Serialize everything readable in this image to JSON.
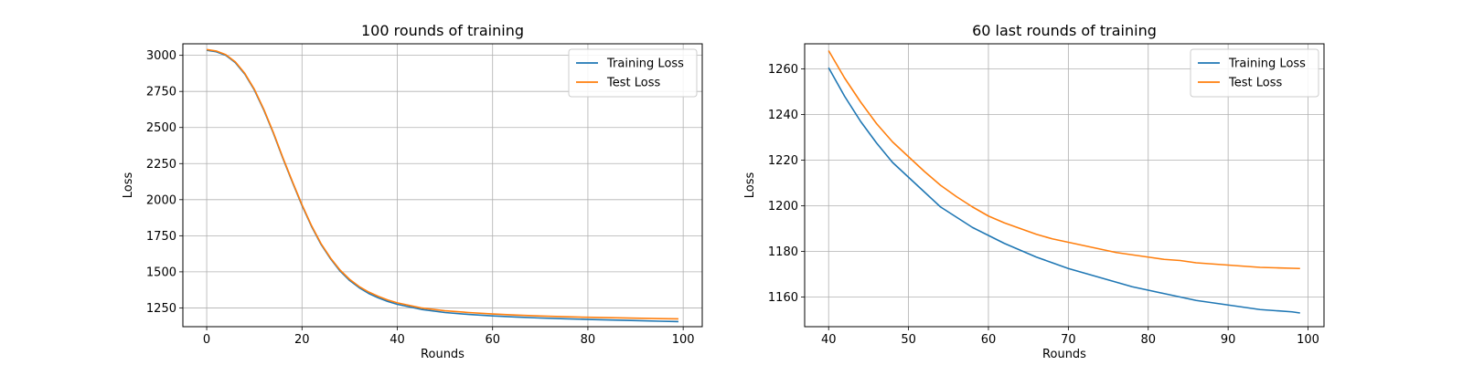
{
  "chart_data": [
    {
      "type": "line",
      "title": "100 rounds of training",
      "xlabel": "Rounds",
      "ylabel": "Loss",
      "xlim": [
        -5,
        104
      ],
      "ylim": [
        1120,
        3080
      ],
      "xticks": [
        0,
        20,
        40,
        60,
        80,
        100
      ],
      "yticks": [
        1250,
        1500,
        1750,
        2000,
        2250,
        2500,
        2750,
        3000
      ],
      "grid": true,
      "legend": "top-right",
      "series": [
        {
          "name": "Training Loss",
          "color": "#1f77b4",
          "x": [
            0,
            2,
            4,
            6,
            8,
            10,
            12,
            14,
            16,
            18,
            20,
            22,
            24,
            26,
            28,
            30,
            32,
            34,
            36,
            38,
            40,
            45,
            50,
            55,
            60,
            65,
            70,
            75,
            80,
            85,
            90,
            95,
            99
          ],
          "y": [
            3035,
            3025,
            3000,
            2950,
            2870,
            2760,
            2620,
            2460,
            2285,
            2120,
            1960,
            1815,
            1690,
            1590,
            1505,
            1440,
            1390,
            1350,
            1320,
            1295,
            1275,
            1240,
            1218,
            1205,
            1195,
            1187,
            1180,
            1175,
            1170,
            1166,
            1162,
            1158,
            1155
          ]
        },
        {
          "name": "Test Loss",
          "color": "#ff7f0e",
          "x": [
            0,
            2,
            4,
            6,
            8,
            10,
            12,
            14,
            16,
            18,
            20,
            22,
            24,
            26,
            28,
            30,
            32,
            34,
            36,
            38,
            40,
            45,
            50,
            55,
            60,
            65,
            70,
            75,
            80,
            85,
            90,
            95,
            99
          ],
          "y": [
            3040,
            3030,
            3005,
            2955,
            2875,
            2765,
            2625,
            2465,
            2290,
            2125,
            1965,
            1820,
            1695,
            1595,
            1512,
            1448,
            1398,
            1360,
            1330,
            1305,
            1285,
            1250,
            1230,
            1218,
            1208,
            1200,
            1194,
            1189,
            1185,
            1182,
            1179,
            1176,
            1174
          ]
        }
      ]
    },
    {
      "type": "line",
      "title": "60 last rounds of training",
      "xlabel": "Rounds",
      "ylabel": "Loss",
      "xlim": [
        37,
        102
      ],
      "ylim": [
        1147,
        1271
      ],
      "xticks": [
        40,
        50,
        60,
        70,
        80,
        90,
        100
      ],
      "yticks": [
        1160,
        1180,
        1200,
        1220,
        1240,
        1260
      ],
      "grid": true,
      "legend": "top-right",
      "series": [
        {
          "name": "Training Loss",
          "color": "#1f77b4",
          "x": [
            40,
            42,
            44,
            46,
            48,
            50,
            52,
            54,
            56,
            58,
            60,
            62,
            64,
            66,
            68,
            70,
            72,
            74,
            76,
            78,
            80,
            82,
            84,
            86,
            88,
            90,
            92,
            94,
            96,
            98,
            99
          ],
          "y": [
            1260.5,
            1248,
            1237,
            1227.5,
            1219,
            1212.5,
            1206,
            1199.5,
            1195,
            1190.5,
            1187,
            1183.5,
            1180.5,
            1177.5,
            1175,
            1172.5,
            1170.5,
            1168.5,
            1166.5,
            1164.5,
            1163,
            1161.5,
            1160,
            1158.5,
            1157.5,
            1156.5,
            1155.5,
            1154.5,
            1154,
            1153.5,
            1153
          ]
        },
        {
          "name": "Test Loss",
          "color": "#ff7f0e",
          "x": [
            40,
            42,
            44,
            46,
            48,
            50,
            52,
            54,
            56,
            58,
            60,
            62,
            64,
            66,
            68,
            70,
            72,
            74,
            76,
            78,
            80,
            82,
            84,
            86,
            88,
            90,
            92,
            94,
            96,
            98,
            99
          ],
          "y": [
            1268,
            1256,
            1245.5,
            1236,
            1228,
            1221.5,
            1215,
            1209,
            1204,
            1199.5,
            1195.5,
            1192.5,
            1190,
            1187.5,
            1185.5,
            1184,
            1182.5,
            1181,
            1179.5,
            1178.5,
            1177.5,
            1176.5,
            1176,
            1175,
            1174.5,
            1174,
            1173.5,
            1173,
            1172.8,
            1172.6,
            1172.5
          ]
        }
      ]
    }
  ]
}
